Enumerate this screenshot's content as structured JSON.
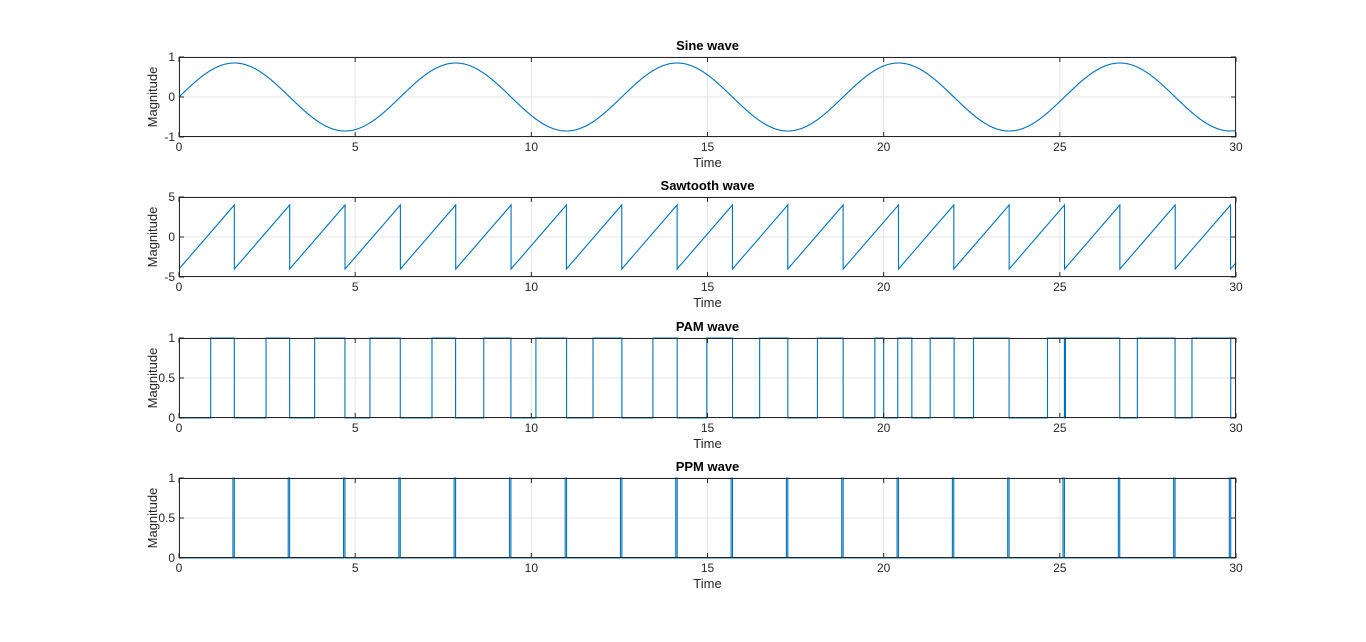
{
  "figure": {
    "background": "#ffffff",
    "line_color": "#0072bd",
    "grid_color": "#e6e6e6"
  },
  "chart_data": [
    {
      "type": "line",
      "title": "Sine wave",
      "xlabel": "Time",
      "ylabel": "Magnitude",
      "xlim": [
        0,
        30
      ],
      "ylim": [
        -1,
        1
      ],
      "xticks": [
        0,
        5,
        10,
        15,
        20,
        25,
        30
      ],
      "yticks": [
        -1,
        0,
        1
      ],
      "grid": true,
      "function": "sine",
      "amplitude": 0.85,
      "angular_frequency": 1
    },
    {
      "type": "line",
      "title": "Sawtooth wave",
      "xlabel": "Time",
      "ylabel": "Magnitude",
      "xlim": [
        0,
        30
      ],
      "ylim": [
        -5,
        5
      ],
      "xticks": [
        0,
        5,
        10,
        15,
        20,
        25,
        30
      ],
      "yticks": [
        -5,
        0,
        5
      ],
      "grid": true,
      "function": "sawtooth",
      "amplitude": 4,
      "period": 1.5708
    },
    {
      "type": "line",
      "title": "PAM wave",
      "xlabel": "Time",
      "ylabel": "Magnitude",
      "xlim": [
        0,
        30
      ],
      "ylim": [
        0,
        1
      ],
      "xticks": [
        0,
        5,
        10,
        15,
        20,
        25,
        30
      ],
      "yticks": [
        0,
        0.5,
        1
      ],
      "grid": true,
      "function": "pulse_compare",
      "high_intervals": [
        [
          0.9,
          1.57
        ],
        [
          2.47,
          3.14
        ],
        [
          3.85,
          4.71
        ],
        [
          5.42,
          6.28
        ],
        [
          7.18,
          7.85
        ],
        [
          8.65,
          9.42
        ],
        [
          10.13,
          11.0
        ],
        [
          11.75,
          12.57
        ],
        [
          13.45,
          14.14
        ],
        [
          14.98,
          15.71
        ],
        [
          16.48,
          17.28
        ],
        [
          18.12,
          18.85
        ],
        [
          19.75,
          20.0
        ],
        [
          20.4,
          20.8
        ],
        [
          21.32,
          22.0
        ],
        [
          22.55,
          23.56
        ],
        [
          24.65,
          25.13
        ],
        [
          25.16,
          26.7
        ],
        [
          27.2,
          28.27
        ],
        [
          28.75,
          29.85
        ]
      ]
    },
    {
      "type": "line",
      "title": "PPM wave",
      "xlabel": "Time",
      "ylabel": "Magnitude",
      "xlim": [
        0,
        30
      ],
      "ylim": [
        0,
        1
      ],
      "xticks": [
        0,
        5,
        10,
        15,
        20,
        25,
        30
      ],
      "yticks": [
        0,
        0.5,
        1
      ],
      "grid": true,
      "function": "pulse_train",
      "pulse_times": [
        1.57,
        3.14,
        4.71,
        6.28,
        7.85,
        9.42,
        11.0,
        12.57,
        14.14,
        15.71,
        17.28,
        18.85,
        20.42,
        21.99,
        23.56,
        25.13,
        26.7,
        28.27,
        29.85
      ]
    }
  ]
}
